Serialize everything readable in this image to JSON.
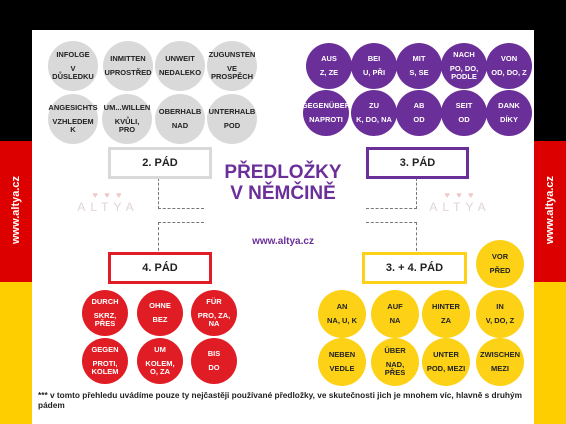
{
  "flag_colors": [
    "#000000",
    "#dd0000",
    "#ffce00"
  ],
  "side_label": "www.altya.cz",
  "title": {
    "line1": "PŘEDLOŽKY",
    "line2": "V NĚMČINĚ"
  },
  "url": "www.altya.cz",
  "logo": {
    "text": "ALTYA",
    "hearts": "♥ ♥ ♥"
  },
  "genitive": {
    "label": "2. PÁD",
    "color": "#d9d9d9",
    "items": [
      [
        "INFOLGE",
        "V DŮSLEDKU"
      ],
      [
        "INMITTEN",
        "UPROSTŘED"
      ],
      [
        "UNWEIT",
        "NEDALEKO"
      ],
      [
        "ZUGUNSTEN",
        "VE PROSPĚCH"
      ],
      [
        "ANGESICHTS",
        "VZHLEDEM K"
      ],
      [
        "UM...WILLEN",
        "KVŮLI, PRO"
      ],
      [
        "OBERHALB",
        "NAD"
      ],
      [
        "UNTERHALB",
        "POD"
      ]
    ]
  },
  "dative": {
    "label": "3. PÁD",
    "color": "#6a2f98",
    "items": [
      [
        "AUS",
        "Z, ZE"
      ],
      [
        "BEI",
        "U, PŘI"
      ],
      [
        "MIT",
        "S, SE"
      ],
      [
        "NACH",
        "PO, DO, PODLE"
      ],
      [
        "VON",
        "OD, DO, Z"
      ],
      [
        "GEGENÜBER",
        "NAPROTI"
      ],
      [
        "ZU",
        "K, DO, NA"
      ],
      [
        "AB",
        "OD"
      ],
      [
        "SEIT",
        "OD"
      ],
      [
        "DANK",
        "DÍKY"
      ]
    ]
  },
  "accusative": {
    "label": "4. PÁD",
    "color": "#e01d25",
    "items": [
      [
        "DURCH",
        "SKRZ, PŘES"
      ],
      [
        "OHNE",
        "BEZ"
      ],
      [
        "FÜR",
        "PRO, ZA, NA"
      ],
      [
        "GEGEN",
        "PROTI, KOLEM"
      ],
      [
        "UM",
        "KOLEM, O, ZA"
      ],
      [
        "BIS",
        "DO"
      ]
    ]
  },
  "two_way": {
    "label": "3. + 4. PÁD",
    "color": "#fcd116",
    "items": [
      [
        "VOR",
        "PŘED"
      ],
      [
        "AN",
        "NA, U, K"
      ],
      [
        "AUF",
        "NA"
      ],
      [
        "HINTER",
        "ZA"
      ],
      [
        "IN",
        "V, DO, Z"
      ],
      [
        "NEBEN",
        "VEDLE"
      ],
      [
        "ÜBER",
        "NAD, PŘES"
      ],
      [
        "UNTER",
        "POD, MEZI"
      ],
      [
        "ZWISCHEN",
        "MEZI"
      ]
    ]
  },
  "footnote": "*** v tomto přehledu uvádíme pouze ty nejčastěji používané předložky, ve skutečnosti jich je mnohem víc, hlavně s druhým pádem"
}
